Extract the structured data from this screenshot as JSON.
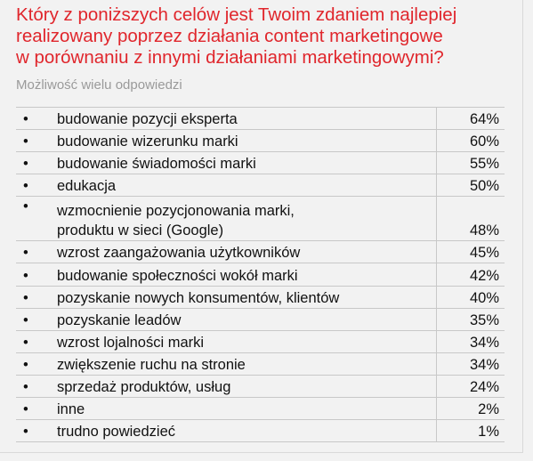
{
  "question": {
    "line1": "Który z poniższych celów jest Twoim zdaniem najlepiej",
    "line2": "realizowany poprzez działania content marketingowe",
    "line3": "w porównaniu z innymi działaniami marketingowymi?"
  },
  "note": "Możliwość wielu odpowiedzi",
  "bullet_char": "•",
  "answers": [
    {
      "label": "budowanie pozycji eksperta",
      "value": "64%"
    },
    {
      "label": "budowanie wizerunku marki",
      "value": "60%"
    },
    {
      "label": "budowanie świadomości marki",
      "value": "55%"
    },
    {
      "label": "edukacja",
      "value": "50%"
    },
    {
      "label_line1": "wzmocnienie pozycjonowania marki,",
      "label_line2": "produktu w sieci (Google)",
      "value": "48%"
    },
    {
      "label": "wzrost zaangażowania użytkowników",
      "value": "45%"
    },
    {
      "label": "budowanie społeczności wokół marki",
      "value": "42%"
    },
    {
      "label": "pozyskanie nowych konsumentów, klientów",
      "value": "40%"
    },
    {
      "label": "pozyskanie leadów",
      "value": "35%"
    },
    {
      "label": "wzrost lojalności marki",
      "value": "34%"
    },
    {
      "label": "zwiększenie ruchu na stronie",
      "value": "34%"
    },
    {
      "label": "sprzedaż produktów, usług",
      "value": "24%"
    },
    {
      "label": "inne",
      "value": "2%"
    },
    {
      "label": "trudno powiedzieć",
      "value": "1%"
    }
  ],
  "colors": {
    "title": "#e0262c",
    "note": "#9a9a9a",
    "background": "#f2f2f2",
    "rule": "#c8c8c8"
  }
}
